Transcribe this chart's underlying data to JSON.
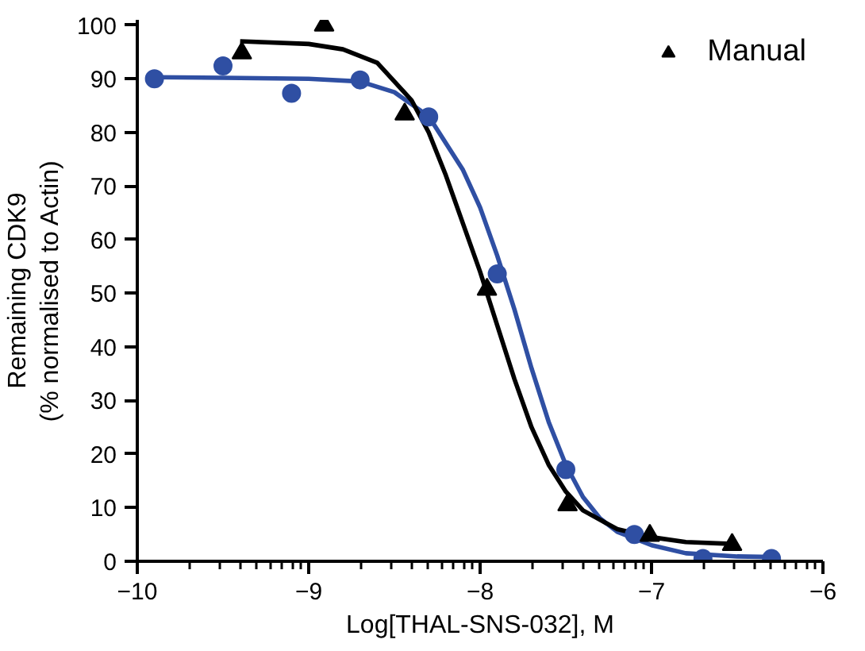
{
  "chart_data": {
    "type": "scatter",
    "xlabel": "Log[THAL-SNS-032], M",
    "ylabel": "Remaining CDK9\n(% normalised to Actin)",
    "xlim": [
      -10,
      -6
    ],
    "xticks": [
      -10,
      -9,
      -8,
      -7,
      -6
    ],
    "ylim": [
      0,
      101
    ],
    "yticks": [
      0,
      10,
      20,
      30,
      40,
      50,
      60,
      70,
      80,
      90,
      100
    ],
    "grid": false,
    "legend": "top right",
    "series": [
      {
        "type": "line",
        "color": "#2f4fa3",
        "line_style": "solid",
        "x": [
          -9.9,
          -9.5,
          -9.0,
          -8.7,
          -8.5,
          -8.3,
          -8.1,
          -8.0,
          -7.9,
          -7.8,
          -7.7,
          -7.6,
          -7.5,
          -7.4,
          -7.3,
          -7.2,
          -7.0,
          -6.8,
          -6.5,
          -6.3
        ],
        "values": [
          90.3,
          90.2,
          90,
          89.5,
          87.5,
          83,
          73,
          66,
          57,
          47,
          36,
          26,
          18,
          12,
          8,
          5.5,
          3,
          1.5,
          0.9,
          0.8
        ]
      },
      {
        "type": "line",
        "color": "#000000",
        "line_style": "solid",
        "x": [
          -9.4,
          -9.0,
          -8.8,
          -8.6,
          -8.4,
          -8.3,
          -8.2,
          -8.1,
          -8.0,
          -7.9,
          -7.8,
          -7.7,
          -7.6,
          -7.5,
          -7.4,
          -7.2,
          -7.0,
          -6.8,
          -6.5
        ],
        "values": [
          97,
          96.5,
          95.5,
          93,
          86,
          80,
          72,
          63,
          54,
          44,
          34,
          25,
          18,
          13,
          9.5,
          6,
          4.5,
          3.6,
          3.2
        ]
      },
      {
        "color": "#2f4fa3",
        "marker": "circle",
        "x": [
          -9.9,
          -9.5,
          -9.1,
          -8.7,
          -8.3,
          -7.9,
          -7.5,
          -7.1,
          -6.7,
          -6.3
        ],
        "values": [
          90,
          92.4,
          87.3,
          89.8,
          82.9,
          53.6,
          17.1,
          5.0,
          0.5,
          0.5
        ]
      },
      {
        "name": "Manual",
        "color": "#000000",
        "marker": "triangle",
        "x": [
          -9.39,
          -8.91,
          -8.44,
          -7.96,
          -7.49,
          -7.01,
          -6.53
        ],
        "values": [
          94.8,
          100,
          83.4,
          50.7,
          10.5,
          4.8,
          3.1
        ]
      }
    ]
  }
}
